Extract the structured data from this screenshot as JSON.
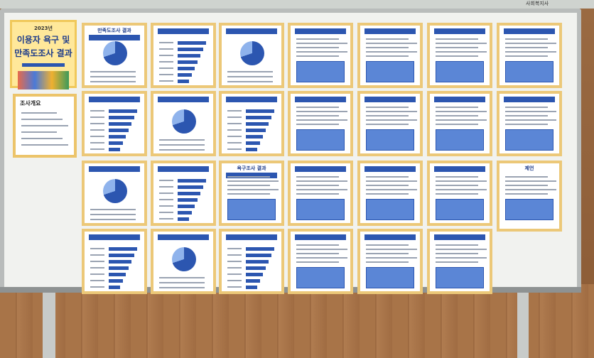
{
  "poster": {
    "year": "2023년",
    "title_line1": "이용자 욕구 및",
    "title_line2": "만족도조사 결과"
  },
  "overview": {
    "title": "조사개요"
  },
  "sections": {
    "satisfaction": "만족도조사 결과",
    "needs": "욕구조사 결과",
    "suggestion": "제언"
  },
  "sign": "사회복지사"
}
